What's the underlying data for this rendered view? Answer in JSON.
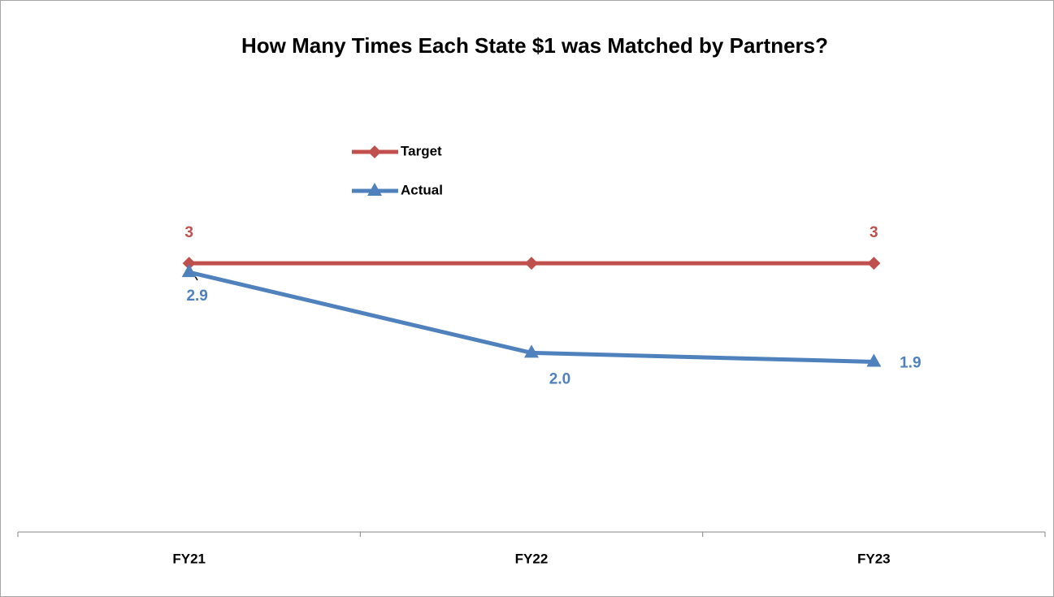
{
  "chart_data": {
    "type": "line",
    "title": "How Many Times Each State $1 was Matched by Partners?",
    "categories": [
      "FY21",
      "FY22",
      "FY23"
    ],
    "series": [
      {
        "name": "Target",
        "color": "#c0504d",
        "marker": "diamond",
        "values": [
          3,
          3,
          3
        ],
        "value_labels": [
          "3",
          null,
          "3"
        ]
      },
      {
        "name": "Actual",
        "color": "#4f81bd",
        "marker": "triangle",
        "values": [
          2.9,
          2.0,
          1.9
        ],
        "value_labels": [
          "2.9",
          "2.0",
          "1.9"
        ]
      }
    ],
    "ylim": [
      0,
      3.5
    ]
  }
}
